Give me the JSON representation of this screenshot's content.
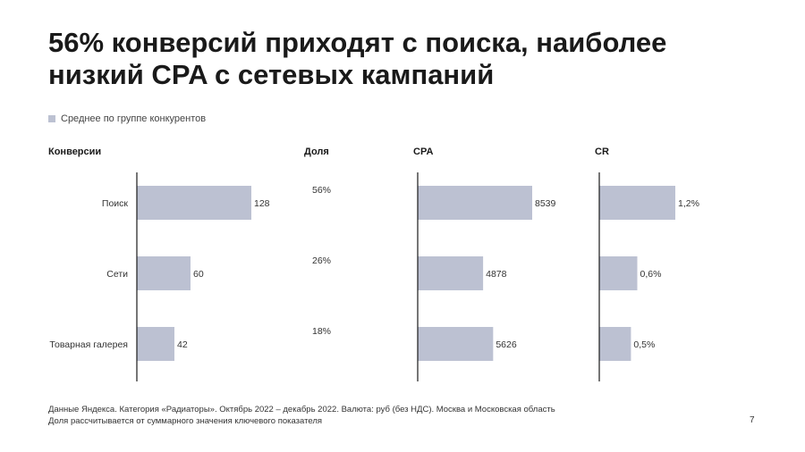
{
  "title_line1": "56% конверсий приходят с поиска, наиболее",
  "title_line2": "низкий CPA с сетевых кампаний",
  "legend_label": "Среднее по группе конкурентов",
  "colors": {
    "bar": "#bcc1d2",
    "axis": "#1a1a1a"
  },
  "chart_data": [
    {
      "type": "bar",
      "title": "Конверсии",
      "categories": [
        "Поиск",
        "Сети",
        "Товарная галерея"
      ],
      "values": [
        128,
        60,
        42
      ],
      "labels": [
        "128",
        "60",
        "42"
      ]
    },
    {
      "type": "table",
      "title": "Доля",
      "categories": [
        "Поиск",
        "Сети",
        "Товарная галерея"
      ],
      "values": [
        56,
        26,
        18
      ],
      "labels": [
        "56%",
        "26%",
        "18%"
      ]
    },
    {
      "type": "bar",
      "title": "CPA",
      "categories": [
        "Поиск",
        "Сети",
        "Товарная галерея"
      ],
      "values": [
        8539,
        4878,
        5626
      ],
      "labels": [
        "8539",
        "4878",
        "5626"
      ]
    },
    {
      "type": "bar",
      "title": "CR",
      "categories": [
        "Поиск",
        "Сети",
        "Товарная галерея"
      ],
      "values": [
        1.2,
        0.6,
        0.5
      ],
      "labels": [
        "1,2%",
        "0,6%",
        "0,5%"
      ]
    }
  ],
  "footer_line1": "Данные Яндекса. Категория «Радиаторы». Октябрь 2022 – декабрь 2022. Валюта: руб (без НДС). Москва и Московская область",
  "footer_line2": "Доля рассчитывается от суммарного значения ключевого показателя",
  "page_number": "7"
}
